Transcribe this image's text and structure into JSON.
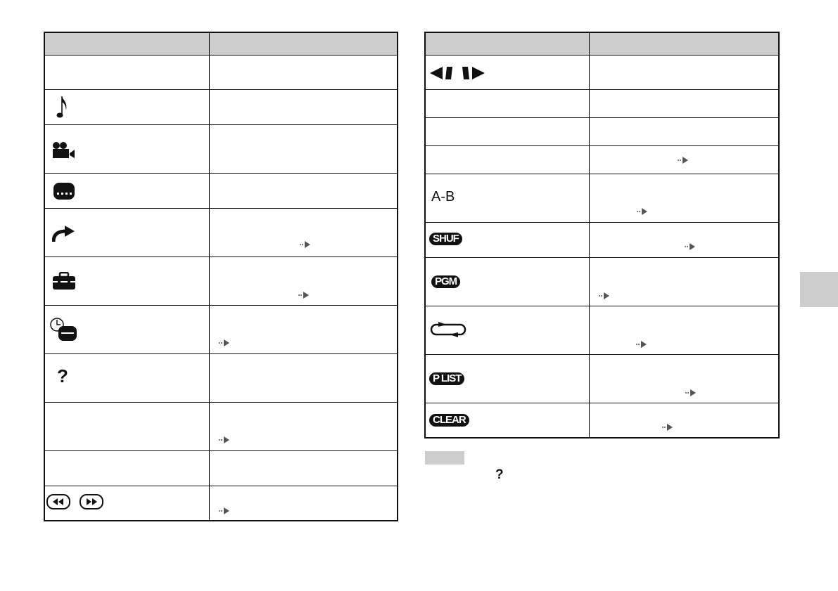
{
  "left_table": {
    "icons": [
      "music-note-icon",
      "movie-camera-icon",
      "subtitle-icon",
      "jump-arrow-icon",
      "toolbox-icon",
      "timer-display-icon",
      "help-icon",
      "rewind-icon",
      "fast-forward-icon"
    ],
    "help_glyph": "?"
  },
  "right_table": {
    "ab_label": "A-B",
    "shuffle_label": "SHUF",
    "program_label": "PGM",
    "playlist_label": "P LIST",
    "clear_label": "CLEAR"
  },
  "note": {
    "help_glyph": "?"
  },
  "colors": {
    "header_gray": "#cdcdcd",
    "reference_arrow": "#555555",
    "side_tab": "#cdcdcd"
  }
}
